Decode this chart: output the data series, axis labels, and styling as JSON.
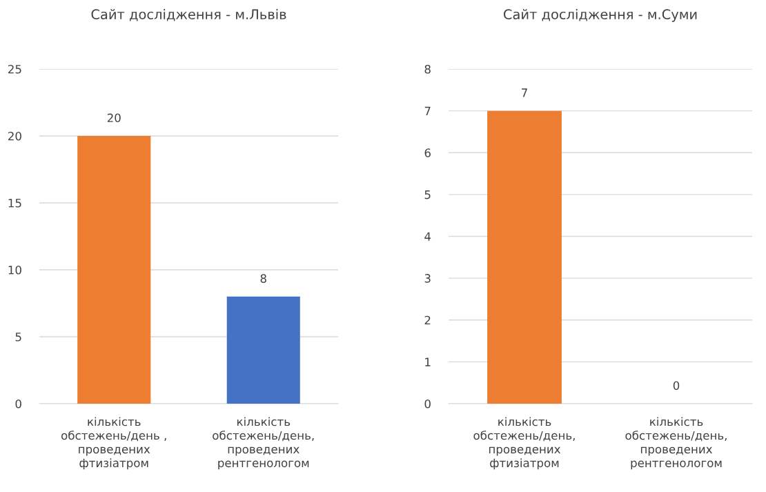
{
  "chart_data": [
    {
      "type": "bar",
      "title": "Сайт дослідження - м.Львів",
      "categories": [
        "кількість\nобстежень/день ,\nпроведених\nфтизіатром",
        "кількість\nобстежень/день,\nпроведених\nрентгенологом"
      ],
      "values": [
        20,
        8
      ],
      "colors": [
        "#ed7d31",
        "#4472c4"
      ],
      "ylim": [
        0,
        25
      ],
      "yticks": [
        0,
        5,
        10,
        15,
        20,
        25
      ],
      "grid": "y",
      "data_labels": true
    },
    {
      "type": "bar",
      "title": "Сайт дослідження - м.Суми",
      "categories": [
        "кількість\nобстежень/день,\nпроведених\nфтизіатром",
        "кількість\nобстежень/день,\nпроведених\nрентгенологом"
      ],
      "values": [
        7,
        0
      ],
      "colors": [
        "#ed7d31",
        "#4472c4"
      ],
      "ylim": [
        0,
        8
      ],
      "yticks": [
        0,
        1,
        2,
        3,
        4,
        5,
        6,
        7,
        8
      ],
      "grid": "y",
      "data_labels": true
    }
  ]
}
